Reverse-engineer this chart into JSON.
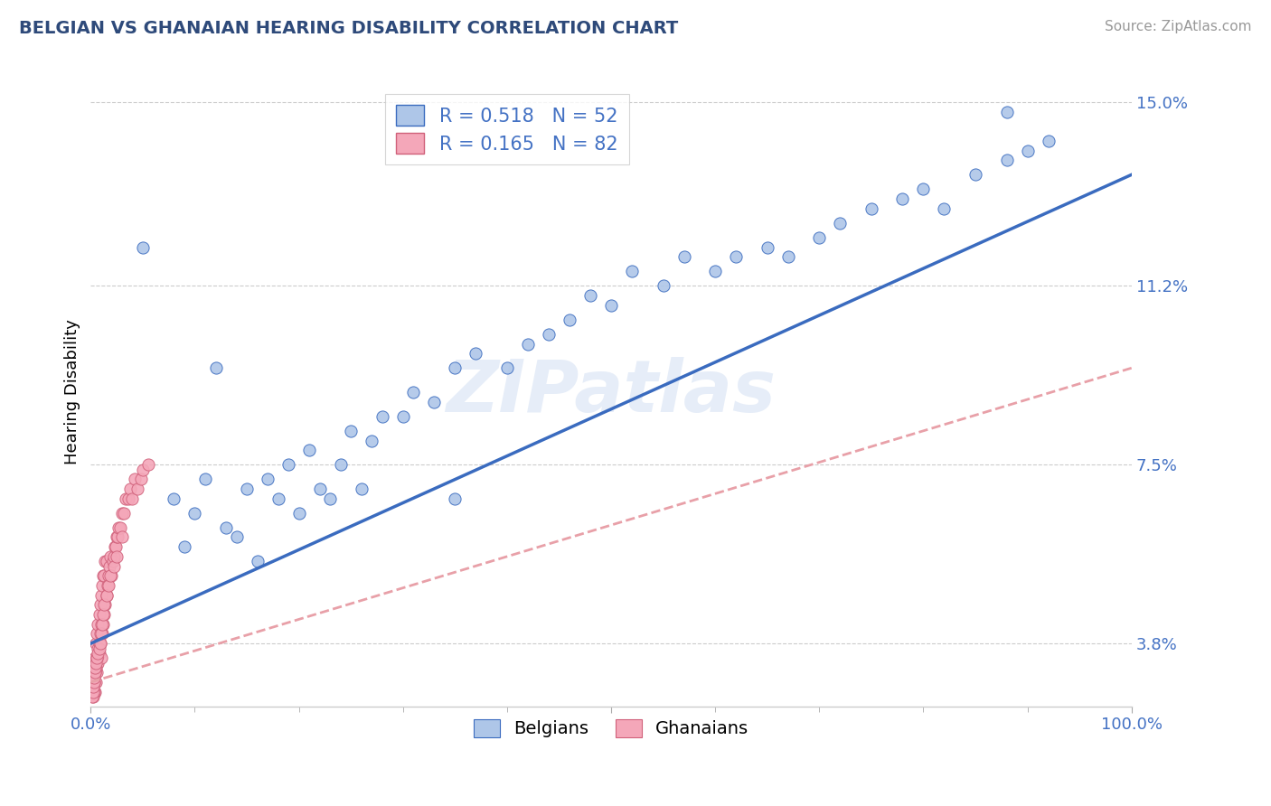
{
  "title": "BELGIAN VS GHANAIAN HEARING DISABILITY CORRELATION CHART",
  "source": "Source: ZipAtlas.com",
  "ylabel": "Hearing Disability",
  "xlabel": "",
  "xlim": [
    0,
    1.0
  ],
  "ylim": [
    0.025,
    0.155
  ],
  "yticks": [
    0.038,
    0.075,
    0.112,
    0.15
  ],
  "ytick_labels": [
    "3.8%",
    "7.5%",
    "11.2%",
    "15.0%"
  ],
  "legend_entry1": "R = 0.518   N = 52",
  "legend_entry2": "R = 0.165   N = 82",
  "legend_label1": "Belgians",
  "legend_label2": "Ghanaians",
  "watermark": "ZIPatlas",
  "blue_color": "#aec6e8",
  "pink_color": "#f4a7b9",
  "line_blue": "#3a6bbf",
  "line_pink_edge": "#d0607a",
  "trend_blue": "#3a6bbf",
  "trend_pink": "#e8a0a8",
  "title_color": "#2E4A7A",
  "source_color": "#999999",
  "tick_color": "#4472c4",
  "background_color": "#ffffff",
  "belgian_x": [
    0.05,
    0.08,
    0.09,
    0.1,
    0.11,
    0.12,
    0.13,
    0.14,
    0.15,
    0.16,
    0.17,
    0.18,
    0.19,
    0.2,
    0.21,
    0.22,
    0.23,
    0.24,
    0.25,
    0.26,
    0.27,
    0.28,
    0.3,
    0.31,
    0.33,
    0.35,
    0.37,
    0.4,
    0.42,
    0.44,
    0.46,
    0.48,
    0.5,
    0.52,
    0.55,
    0.57,
    0.6,
    0.62,
    0.65,
    0.67,
    0.7,
    0.72,
    0.75,
    0.78,
    0.8,
    0.82,
    0.85,
    0.88,
    0.9,
    0.92,
    0.35,
    0.88
  ],
  "belgian_y": [
    0.12,
    0.068,
    0.058,
    0.065,
    0.072,
    0.095,
    0.062,
    0.06,
    0.07,
    0.055,
    0.072,
    0.068,
    0.075,
    0.065,
    0.078,
    0.07,
    0.068,
    0.075,
    0.082,
    0.07,
    0.08,
    0.085,
    0.085,
    0.09,
    0.088,
    0.095,
    0.098,
    0.095,
    0.1,
    0.102,
    0.105,
    0.11,
    0.108,
    0.115,
    0.112,
    0.118,
    0.115,
    0.118,
    0.12,
    0.118,
    0.122,
    0.125,
    0.128,
    0.13,
    0.132,
    0.128,
    0.135,
    0.138,
    0.14,
    0.142,
    0.068,
    0.148
  ],
  "ghanaian_x": [
    0.002,
    0.003,
    0.004,
    0.004,
    0.005,
    0.005,
    0.006,
    0.006,
    0.007,
    0.007,
    0.008,
    0.008,
    0.009,
    0.009,
    0.01,
    0.01,
    0.011,
    0.011,
    0.012,
    0.012,
    0.013,
    0.013,
    0.014,
    0.014,
    0.015,
    0.015,
    0.016,
    0.017,
    0.018,
    0.019,
    0.02,
    0.021,
    0.022,
    0.023,
    0.024,
    0.025,
    0.026,
    0.027,
    0.028,
    0.03,
    0.032,
    0.034,
    0.036,
    0.038,
    0.04,
    0.042,
    0.045,
    0.048,
    0.05,
    0.055,
    0.002,
    0.003,
    0.003,
    0.004,
    0.005,
    0.006,
    0.007,
    0.008,
    0.009,
    0.01,
    0.001,
    0.002,
    0.002,
    0.003,
    0.003,
    0.004,
    0.004,
    0.005,
    0.006,
    0.007,
    0.008,
    0.009,
    0.01,
    0.011,
    0.012,
    0.013,
    0.015,
    0.017,
    0.019,
    0.022,
    0.025,
    0.03
  ],
  "ghanaian_y": [
    0.03,
    0.032,
    0.028,
    0.035,
    0.03,
    0.038,
    0.032,
    0.04,
    0.034,
    0.042,
    0.036,
    0.044,
    0.038,
    0.046,
    0.035,
    0.048,
    0.04,
    0.05,
    0.042,
    0.052,
    0.044,
    0.052,
    0.046,
    0.055,
    0.048,
    0.055,
    0.05,
    0.052,
    0.054,
    0.056,
    0.052,
    0.055,
    0.056,
    0.058,
    0.058,
    0.06,
    0.06,
    0.062,
    0.062,
    0.065,
    0.065,
    0.068,
    0.068,
    0.07,
    0.068,
    0.072,
    0.07,
    0.072,
    0.074,
    0.075,
    0.027,
    0.028,
    0.03,
    0.032,
    0.033,
    0.035,
    0.037,
    0.038,
    0.04,
    0.042,
    0.027,
    0.028,
    0.029,
    0.03,
    0.031,
    0.032,
    0.033,
    0.034,
    0.035,
    0.036,
    0.037,
    0.038,
    0.04,
    0.042,
    0.044,
    0.046,
    0.048,
    0.05,
    0.052,
    0.054,
    0.056,
    0.06
  ]
}
